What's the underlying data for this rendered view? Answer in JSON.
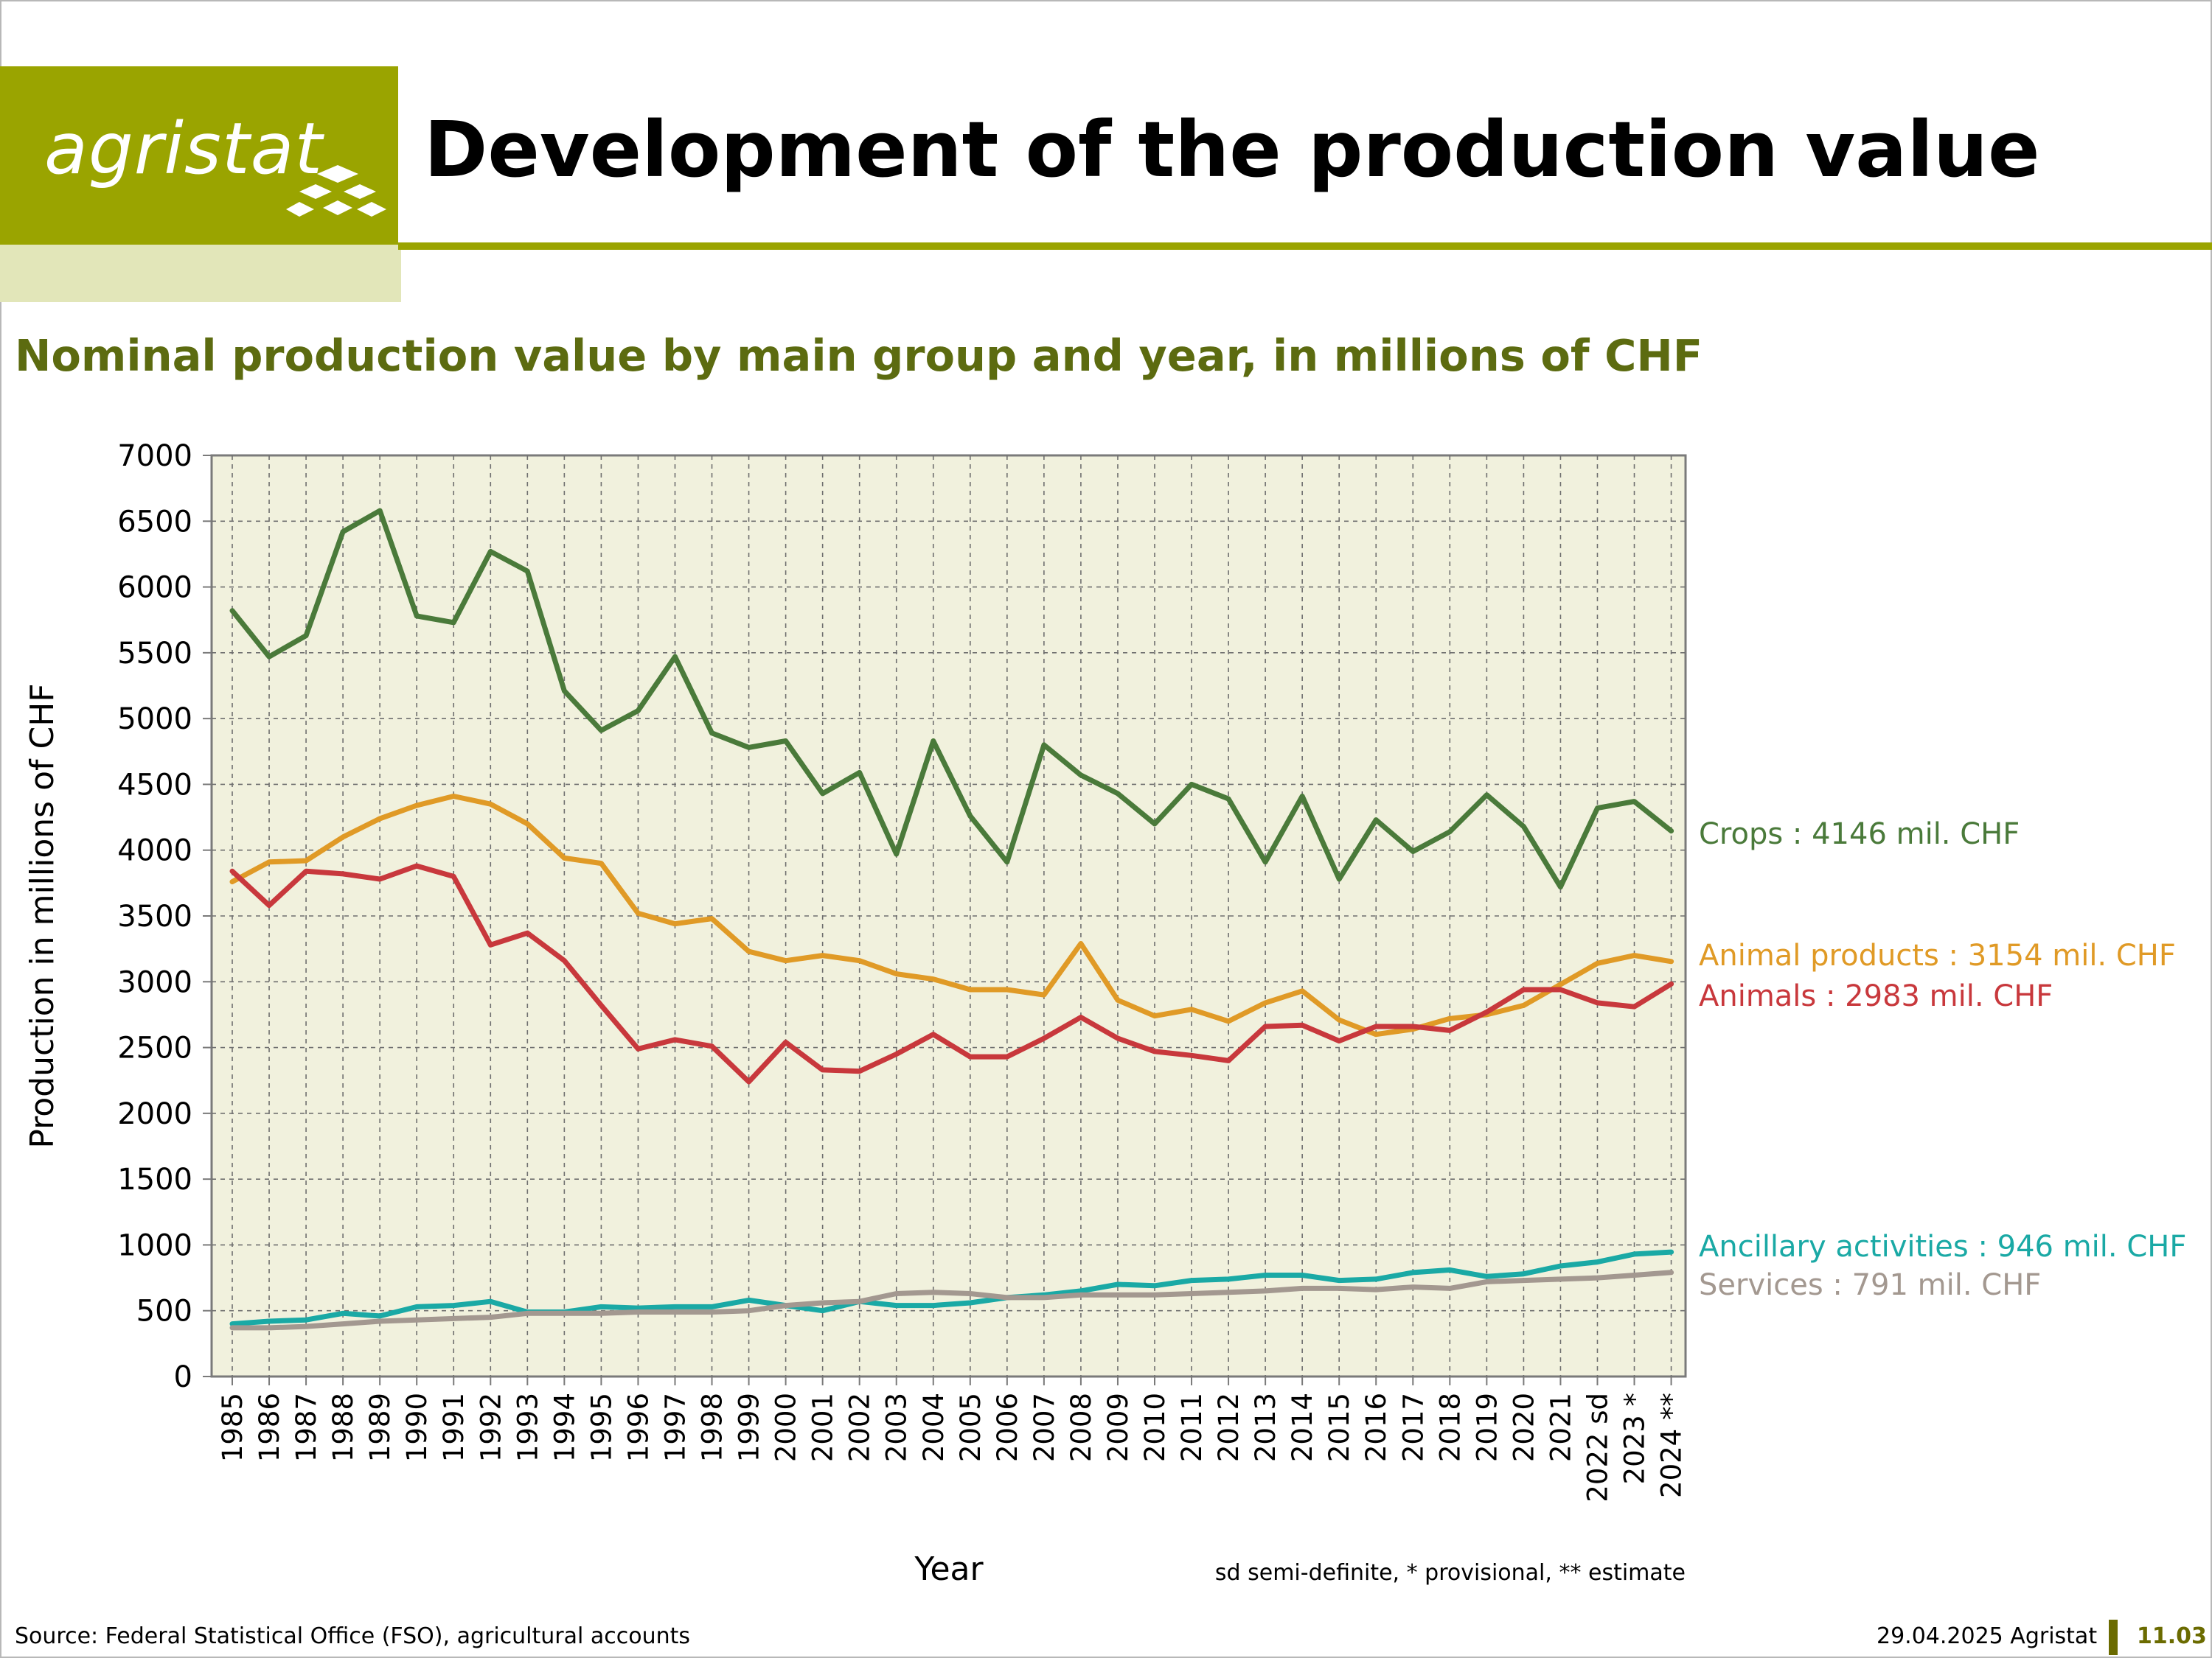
{
  "header": {
    "logo_text": "agristat",
    "title": "Development of the production value",
    "subtitle": "Nominal production value by main group and year, in millions of CHF",
    "brand_color": "#9aa400"
  },
  "footer": {
    "source": "Source: Federal Statistical Office (FSO), agricultural accounts",
    "date": "29.04.2025 Agristat",
    "page": "11.03"
  },
  "chart_data": {
    "type": "line",
    "xlabel": "Year",
    "ylabel": "Production in millions of CHF",
    "ylim": [
      0,
      7000
    ],
    "yticks": [
      0,
      500,
      1000,
      1500,
      2000,
      2500,
      3000,
      3500,
      4000,
      4500,
      5000,
      5500,
      6000,
      6500,
      7000
    ],
    "grid": true,
    "note": "sd semi-definite, * provisional, ** estimate",
    "categories": [
      "1985",
      "1986",
      "1987",
      "1988",
      "1989",
      "1990",
      "1991",
      "1992",
      "1993",
      "1994",
      "1995",
      "1996",
      "1997",
      "1998",
      "1999",
      "2000",
      "2001",
      "2002",
      "2003",
      "2004",
      "2005",
      "2006",
      "2007",
      "2008",
      "2009",
      "2010",
      "2011",
      "2012",
      "2013",
      "2014",
      "2015",
      "2016",
      "2017",
      "2018",
      "2019",
      "2020",
      "2021",
      "2022 sd",
      "2023 *",
      "2024 **"
    ],
    "series": [
      {
        "name": "Crops",
        "label": "Crops : 4146 mil. CHF",
        "color": "#4a7a3a",
        "values": [
          5820,
          5470,
          5630,
          6420,
          6580,
          5780,
          5730,
          6270,
          6120,
          5210,
          4910,
          5060,
          5470,
          4890,
          4780,
          4830,
          4430,
          4590,
          3970,
          4830,
          4260,
          3910,
          4800,
          4570,
          4430,
          4200,
          4500,
          4390,
          3910,
          4410,
          3780,
          4230,
          3990,
          4140,
          4420,
          4180,
          3720,
          4320,
          4370,
          4146
        ]
      },
      {
        "name": "Animal products",
        "label": "Animal products : 3154 mil. CHF",
        "color": "#e09a26",
        "values": [
          3760,
          3910,
          3920,
          4100,
          4240,
          4340,
          4410,
          4350,
          4200,
          3940,
          3900,
          3520,
          3440,
          3480,
          3230,
          3160,
          3200,
          3160,
          3060,
          3020,
          2940,
          2940,
          2900,
          3290,
          2860,
          2740,
          2790,
          2700,
          2840,
          2930,
          2710,
          2600,
          2640,
          2720,
          2750,
          2820,
          2980,
          3140,
          3200,
          3154
        ]
      },
      {
        "name": "Animals",
        "label": "Animals : 2983 mil. CHF",
        "color": "#c8383c",
        "values": [
          3840,
          3580,
          3840,
          3820,
          3780,
          3880,
          3800,
          3280,
          3370,
          3160,
          2820,
          2490,
          2560,
          2510,
          2240,
          2540,
          2330,
          2320,
          2450,
          2600,
          2430,
          2430,
          2570,
          2730,
          2570,
          2470,
          2440,
          2400,
          2660,
          2670,
          2550,
          2660,
          2660,
          2630,
          2770,
          2940,
          2940,
          2840,
          2810,
          2983
        ]
      },
      {
        "name": "Ancillary activities",
        "label": "Ancillary activities : 946 mil. CHF",
        "color": "#1aa9a5",
        "values": [
          400,
          420,
          430,
          480,
          460,
          530,
          540,
          570,
          490,
          490,
          530,
          520,
          530,
          530,
          580,
          540,
          500,
          570,
          540,
          540,
          560,
          600,
          620,
          650,
          700,
          690,
          730,
          740,
          770,
          770,
          730,
          740,
          790,
          810,
          760,
          780,
          840,
          870,
          930,
          946
        ]
      },
      {
        "name": "Services",
        "label": "Services : 791 mil. CHF",
        "color": "#a39890",
        "values": [
          370,
          370,
          380,
          400,
          420,
          430,
          440,
          450,
          480,
          480,
          480,
          490,
          490,
          490,
          500,
          540,
          560,
          570,
          630,
          640,
          630,
          600,
          600,
          620,
          620,
          620,
          630,
          640,
          650,
          670,
          670,
          660,
          680,
          670,
          720,
          730,
          740,
          750,
          770,
          791
        ]
      }
    ]
  }
}
